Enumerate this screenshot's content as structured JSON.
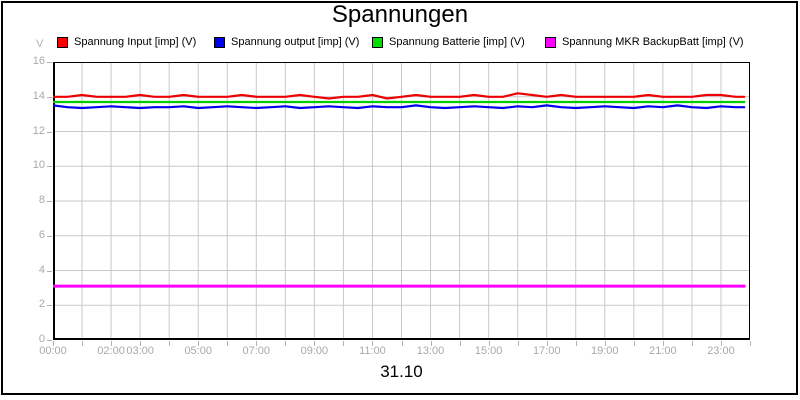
{
  "chart_data": {
    "type": "line",
    "title": "Spannungen",
    "xlabel": "31.10",
    "ylabel": "V",
    "ylim": [
      0,
      16
    ],
    "y_tick_step": 2,
    "y_ticks": [
      0,
      2,
      4,
      6,
      8,
      10,
      12,
      14,
      16
    ],
    "x_hours_span": [
      0,
      24
    ],
    "x_gridline_step_hours": 1,
    "x_ticks": [
      {
        "h": 0,
        "label": "00:00"
      },
      {
        "h": 2,
        "label": "02:00"
      },
      {
        "h": 3,
        "label": "03:00"
      },
      {
        "h": 5,
        "label": "05:00"
      },
      {
        "h": 7,
        "label": "07:00"
      },
      {
        "h": 9,
        "label": "09:00"
      },
      {
        "h": 11,
        "label": "11:00"
      },
      {
        "h": 13,
        "label": "13:00"
      },
      {
        "h": 15,
        "label": "15:00"
      },
      {
        "h": 17,
        "label": "17:00"
      },
      {
        "h": 19,
        "label": "19:00"
      },
      {
        "h": 21,
        "label": "21:00"
      },
      {
        "h": 23,
        "label": "23:00"
      }
    ],
    "grid": true,
    "legend_position": "top",
    "colors": {
      "grid": "#c9c9c9",
      "axis": "#000000",
      "axis_text": "#a9a9a9"
    },
    "series": [
      {
        "name": "Spannung Input [imp] (V)",
        "color": "#ee0000",
        "swatch_color": "#ff0000",
        "width": 2.2,
        "points": [
          [
            0,
            14.0
          ],
          [
            0.5,
            14.0
          ],
          [
            1,
            14.1
          ],
          [
            1.5,
            14.0
          ],
          [
            2,
            14.0
          ],
          [
            2.5,
            14.0
          ],
          [
            3,
            14.1
          ],
          [
            3.5,
            14.0
          ],
          [
            4,
            14.0
          ],
          [
            4.5,
            14.1
          ],
          [
            5,
            14.0
          ],
          [
            5.5,
            14.0
          ],
          [
            6,
            14.0
          ],
          [
            6.5,
            14.1
          ],
          [
            7,
            14.0
          ],
          [
            7.5,
            14.0
          ],
          [
            8,
            14.0
          ],
          [
            8.5,
            14.1
          ],
          [
            9,
            14.0
          ],
          [
            9.5,
            13.9
          ],
          [
            10,
            14.0
          ],
          [
            10.5,
            14.0
          ],
          [
            11,
            14.1
          ],
          [
            11.5,
            13.9
          ],
          [
            12,
            14.0
          ],
          [
            12.5,
            14.1
          ],
          [
            13,
            14.0
          ],
          [
            13.5,
            14.0
          ],
          [
            14,
            14.0
          ],
          [
            14.5,
            14.1
          ],
          [
            15,
            14.0
          ],
          [
            15.5,
            14.0
          ],
          [
            16,
            14.2
          ],
          [
            16.5,
            14.1
          ],
          [
            17,
            14.0
          ],
          [
            17.5,
            14.1
          ],
          [
            18,
            14.0
          ],
          [
            18.5,
            14.0
          ],
          [
            19,
            14.0
          ],
          [
            19.5,
            14.0
          ],
          [
            20,
            14.0
          ],
          [
            20.5,
            14.1
          ],
          [
            21,
            14.0
          ],
          [
            21.5,
            14.0
          ],
          [
            22,
            14.0
          ],
          [
            22.5,
            14.1
          ],
          [
            23,
            14.1
          ],
          [
            23.5,
            14.0
          ],
          [
            23.8,
            14.0
          ]
        ]
      },
      {
        "name": "Spannung output [imp] (V)",
        "color": "#0000ee",
        "swatch_color": "#0000ee",
        "width": 2.2,
        "points": [
          [
            0,
            13.5
          ],
          [
            0.5,
            13.4
          ],
          [
            1,
            13.35
          ],
          [
            1.5,
            13.4
          ],
          [
            2,
            13.45
          ],
          [
            2.5,
            13.4
          ],
          [
            3,
            13.35
          ],
          [
            3.5,
            13.4
          ],
          [
            4,
            13.4
          ],
          [
            4.5,
            13.45
          ],
          [
            5,
            13.35
          ],
          [
            5.5,
            13.4
          ],
          [
            6,
            13.45
          ],
          [
            6.5,
            13.4
          ],
          [
            7,
            13.35
          ],
          [
            7.5,
            13.4
          ],
          [
            8,
            13.45
          ],
          [
            8.5,
            13.35
          ],
          [
            9,
            13.4
          ],
          [
            9.5,
            13.45
          ],
          [
            10,
            13.4
          ],
          [
            10.5,
            13.35
          ],
          [
            11,
            13.45
          ],
          [
            11.5,
            13.4
          ],
          [
            12,
            13.4
          ],
          [
            12.5,
            13.5
          ],
          [
            13,
            13.4
          ],
          [
            13.5,
            13.35
          ],
          [
            14,
            13.4
          ],
          [
            14.5,
            13.45
          ],
          [
            15,
            13.4
          ],
          [
            15.5,
            13.35
          ],
          [
            16,
            13.45
          ],
          [
            16.5,
            13.4
          ],
          [
            17,
            13.5
          ],
          [
            17.5,
            13.4
          ],
          [
            18,
            13.35
          ],
          [
            18.5,
            13.4
          ],
          [
            19,
            13.45
          ],
          [
            19.5,
            13.4
          ],
          [
            20,
            13.35
          ],
          [
            20.5,
            13.45
          ],
          [
            21,
            13.4
          ],
          [
            21.5,
            13.5
          ],
          [
            22,
            13.4
          ],
          [
            22.5,
            13.35
          ],
          [
            23,
            13.45
          ],
          [
            23.5,
            13.4
          ],
          [
            23.8,
            13.4
          ]
        ]
      },
      {
        "name": "Spannung Batterie [imp] (V)",
        "color": "#00cc00",
        "swatch_color": "#00e000",
        "width": 2.2,
        "points": [
          [
            0,
            13.7
          ],
          [
            23.8,
            13.7
          ]
        ]
      },
      {
        "name": "Spannung MKR BackupBatt [imp] (V)",
        "color": "#ff00ff",
        "swatch_color": "#ff00ff",
        "width": 3,
        "points": [
          [
            0,
            3.1
          ],
          [
            23.8,
            3.1
          ]
        ]
      }
    ]
  }
}
